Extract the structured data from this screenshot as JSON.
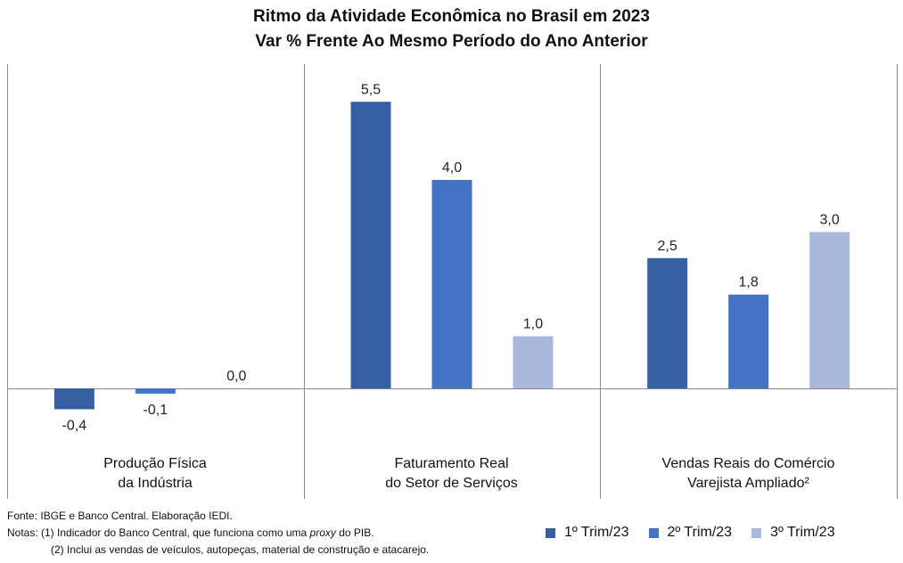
{
  "title": {
    "line1": "Ritmo da Atividade Econômica no Brasil em 2023",
    "line2": "Var % Frente Ao Mesmo Período do Ano Anterior"
  },
  "chart_data": {
    "type": "bar",
    "title": "Ritmo da Atividade Econômica no Brasil em 2023",
    "subtitle": "Var % Frente Ao Mesmo Período do Ano Anterior",
    "categories": [
      [
        "Produção Física",
        "da Indústria"
      ],
      [
        "Faturamento Real",
        "do Setor de Serviços"
      ],
      [
        "Vendas Reais do Comércio",
        "Varejista Ampliado²"
      ]
    ],
    "series": [
      {
        "name": "1º Trim/23",
        "color": "#365fa4",
        "values": [
          -0.4,
          5.5,
          2.5
        ],
        "labels": [
          "-0,4",
          "5,5",
          "2,5"
        ]
      },
      {
        "name": "2º Trim/23",
        "color": "#4472c4",
        "values": [
          -0.1,
          4.0,
          1.8
        ],
        "labels": [
          "-0,1",
          "4,0",
          "1,8"
        ]
      },
      {
        "name": "3º Trim/23",
        "color": "#a9b7dc",
        "values": [
          0.0,
          1.0,
          3.0
        ],
        "labels": [
          "0,0",
          "1,0",
          "3,0"
        ]
      }
    ],
    "ylim": [
      -1.2,
      6.4
    ],
    "grid": false,
    "legend": "bottom-right"
  },
  "notes": {
    "source": "Fonte: IBGE e Banco Central. Elaboração IEDI.",
    "note1_prefix": "Notas: (1) Indicador do Banco Central, que funciona como uma ",
    "note1_italic": "proxy",
    "note1_suffix": " do PIB.",
    "note2": "(2) Inclui as vendas de veículos, autopeças, material de construção e atacarejo."
  }
}
